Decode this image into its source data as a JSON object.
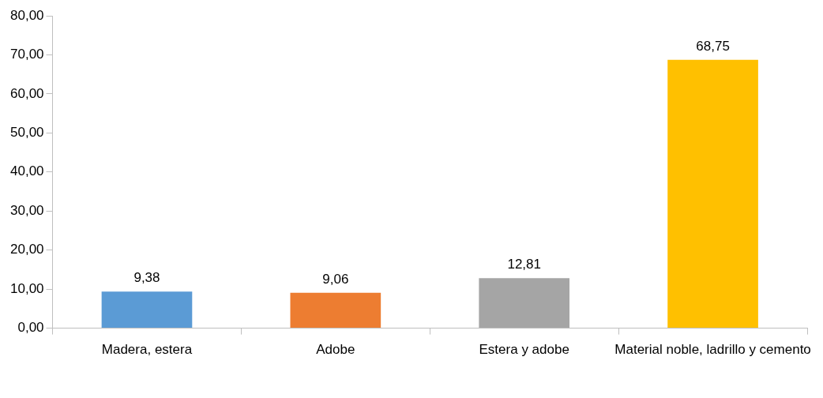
{
  "chart_data": {
    "type": "bar",
    "categories": [
      "Madera, estera",
      "Adobe",
      "Estera y adobe",
      "Material noble, ladrillo y cemento"
    ],
    "values": [
      9.38,
      9.06,
      12.81,
      68.75
    ],
    "colors": [
      "#5b9bd5",
      "#ed7d31",
      "#a5a5a5",
      "#ffc000"
    ],
    "value_labels": [
      "9,38",
      "9,06",
      "12,81",
      "68,75"
    ],
    "ylim": [
      0,
      80
    ],
    "yticks": [
      {
        "value": 0,
        "label": "0,00"
      },
      {
        "value": 10,
        "label": "10,00"
      },
      {
        "value": 20,
        "label": "20,00"
      },
      {
        "value": 30,
        "label": "30,00"
      },
      {
        "value": 40,
        "label": "40,00"
      },
      {
        "value": 50,
        "label": "50,00"
      },
      {
        "value": 60,
        "label": "60,00"
      },
      {
        "value": 70,
        "label": "70,00"
      },
      {
        "value": 80,
        "label": "80,00"
      }
    ],
    "grid": false,
    "legend": false
  }
}
